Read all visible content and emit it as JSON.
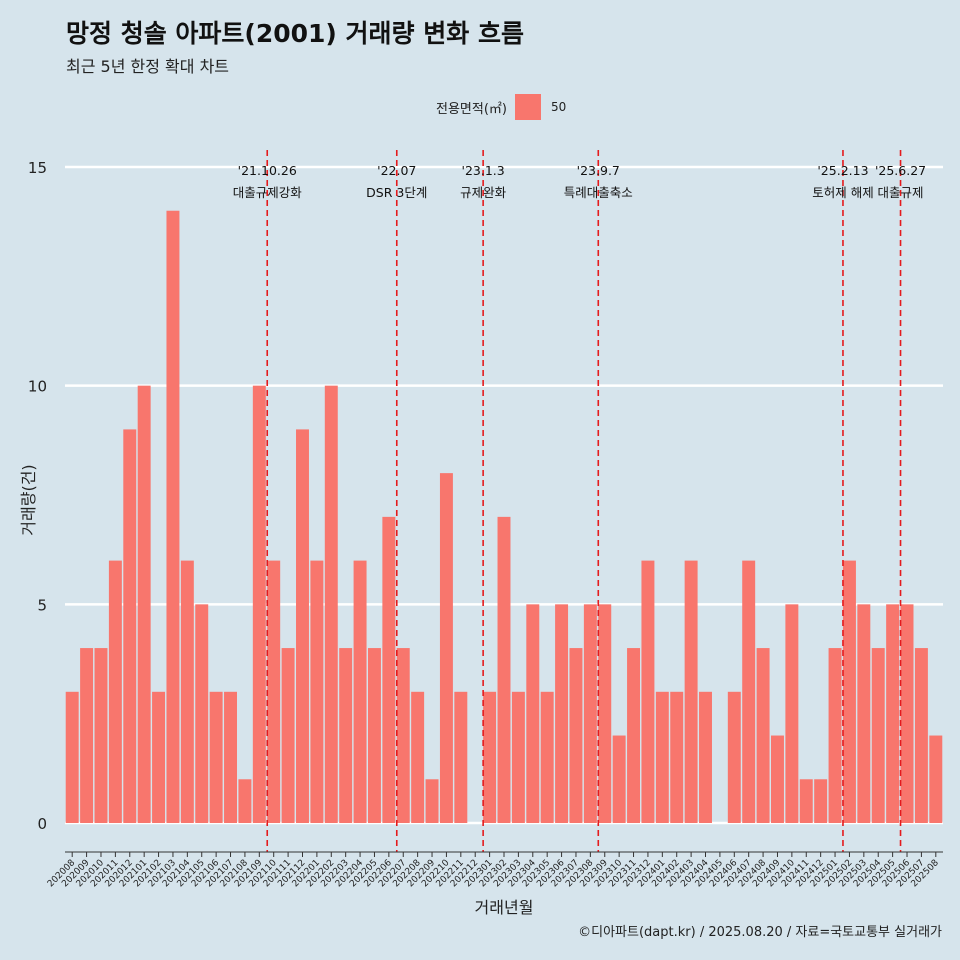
{
  "title": "망정 청솔 아파트(2001) 거래량 변화 흐름",
  "subtitle": "최근 5년 한정 확대 차트",
  "legend": {
    "title": "전용면적(㎡)",
    "label": "50",
    "color": "#f8766d"
  },
  "caption": "©디아파트(dapt.kr) / 2025.08.20 / 자료=국토교통부 실거래가",
  "chart_data": {
    "type": "bar",
    "title": "망정 청솔 아파트(2001) 거래량 변화 흐름",
    "subtitle": "최근 5년 한정 확대 차트",
    "xlabel": "거래년월",
    "ylabel": "거래량(건)",
    "ylim": [
      0,
      15
    ],
    "yticks": [
      0,
      5,
      10,
      15
    ],
    "grid": true,
    "legend_position": "top",
    "categories": [
      "202008",
      "202009",
      "202010",
      "202011",
      "202012",
      "202101",
      "202102",
      "202103",
      "202104",
      "202105",
      "202106",
      "202107",
      "202108",
      "202109",
      "202110",
      "202111",
      "202112",
      "202201",
      "202202",
      "202203",
      "202204",
      "202205",
      "202206",
      "202207",
      "202208",
      "202209",
      "202210",
      "202211",
      "202212",
      "202301",
      "202302",
      "202303",
      "202304",
      "202305",
      "202306",
      "202307",
      "202308",
      "202309",
      "202310",
      "202311",
      "202312",
      "202401",
      "202402",
      "202403",
      "202404",
      "202405",
      "202406",
      "202407",
      "202408",
      "202409",
      "202410",
      "202411",
      "202412",
      "202501",
      "202502",
      "202503",
      "202504",
      "202505",
      "202506",
      "202507",
      "202508"
    ],
    "series": [
      {
        "name": "50",
        "color": "#f8766d",
        "values": [
          3,
          4,
          4,
          6,
          9,
          10,
          3,
          14,
          6,
          5,
          3,
          3,
          1,
          10,
          6,
          4,
          9,
          6,
          10,
          4,
          6,
          4,
          7,
          4,
          3,
          1,
          8,
          3,
          0,
          3,
          7,
          3,
          5,
          3,
          5,
          4,
          5,
          5,
          2,
          4,
          6,
          3,
          3,
          6,
          3,
          0,
          3,
          6,
          4,
          2,
          5,
          1,
          1,
          4,
          6,
          5,
          4,
          5,
          5,
          4,
          2
        ]
      }
    ],
    "annotations": [
      {
        "category": "202110",
        "date": "'21.10.26",
        "label": "대출규제강화"
      },
      {
        "category": "202207",
        "date": "'22.07",
        "label": "DSR 3단계"
      },
      {
        "category": "202301",
        "date": "'23.1.3",
        "label": "규제완화"
      },
      {
        "category": "202309",
        "date": "'23.9.7",
        "label": "특례대출축소"
      },
      {
        "category": "202502",
        "date": "'25.2.13",
        "label": "토허제 해제"
      },
      {
        "category": "202506",
        "date": "'25.6.27",
        "label": "대출규제"
      }
    ],
    "annotation_line_color": "#e41a1c"
  }
}
